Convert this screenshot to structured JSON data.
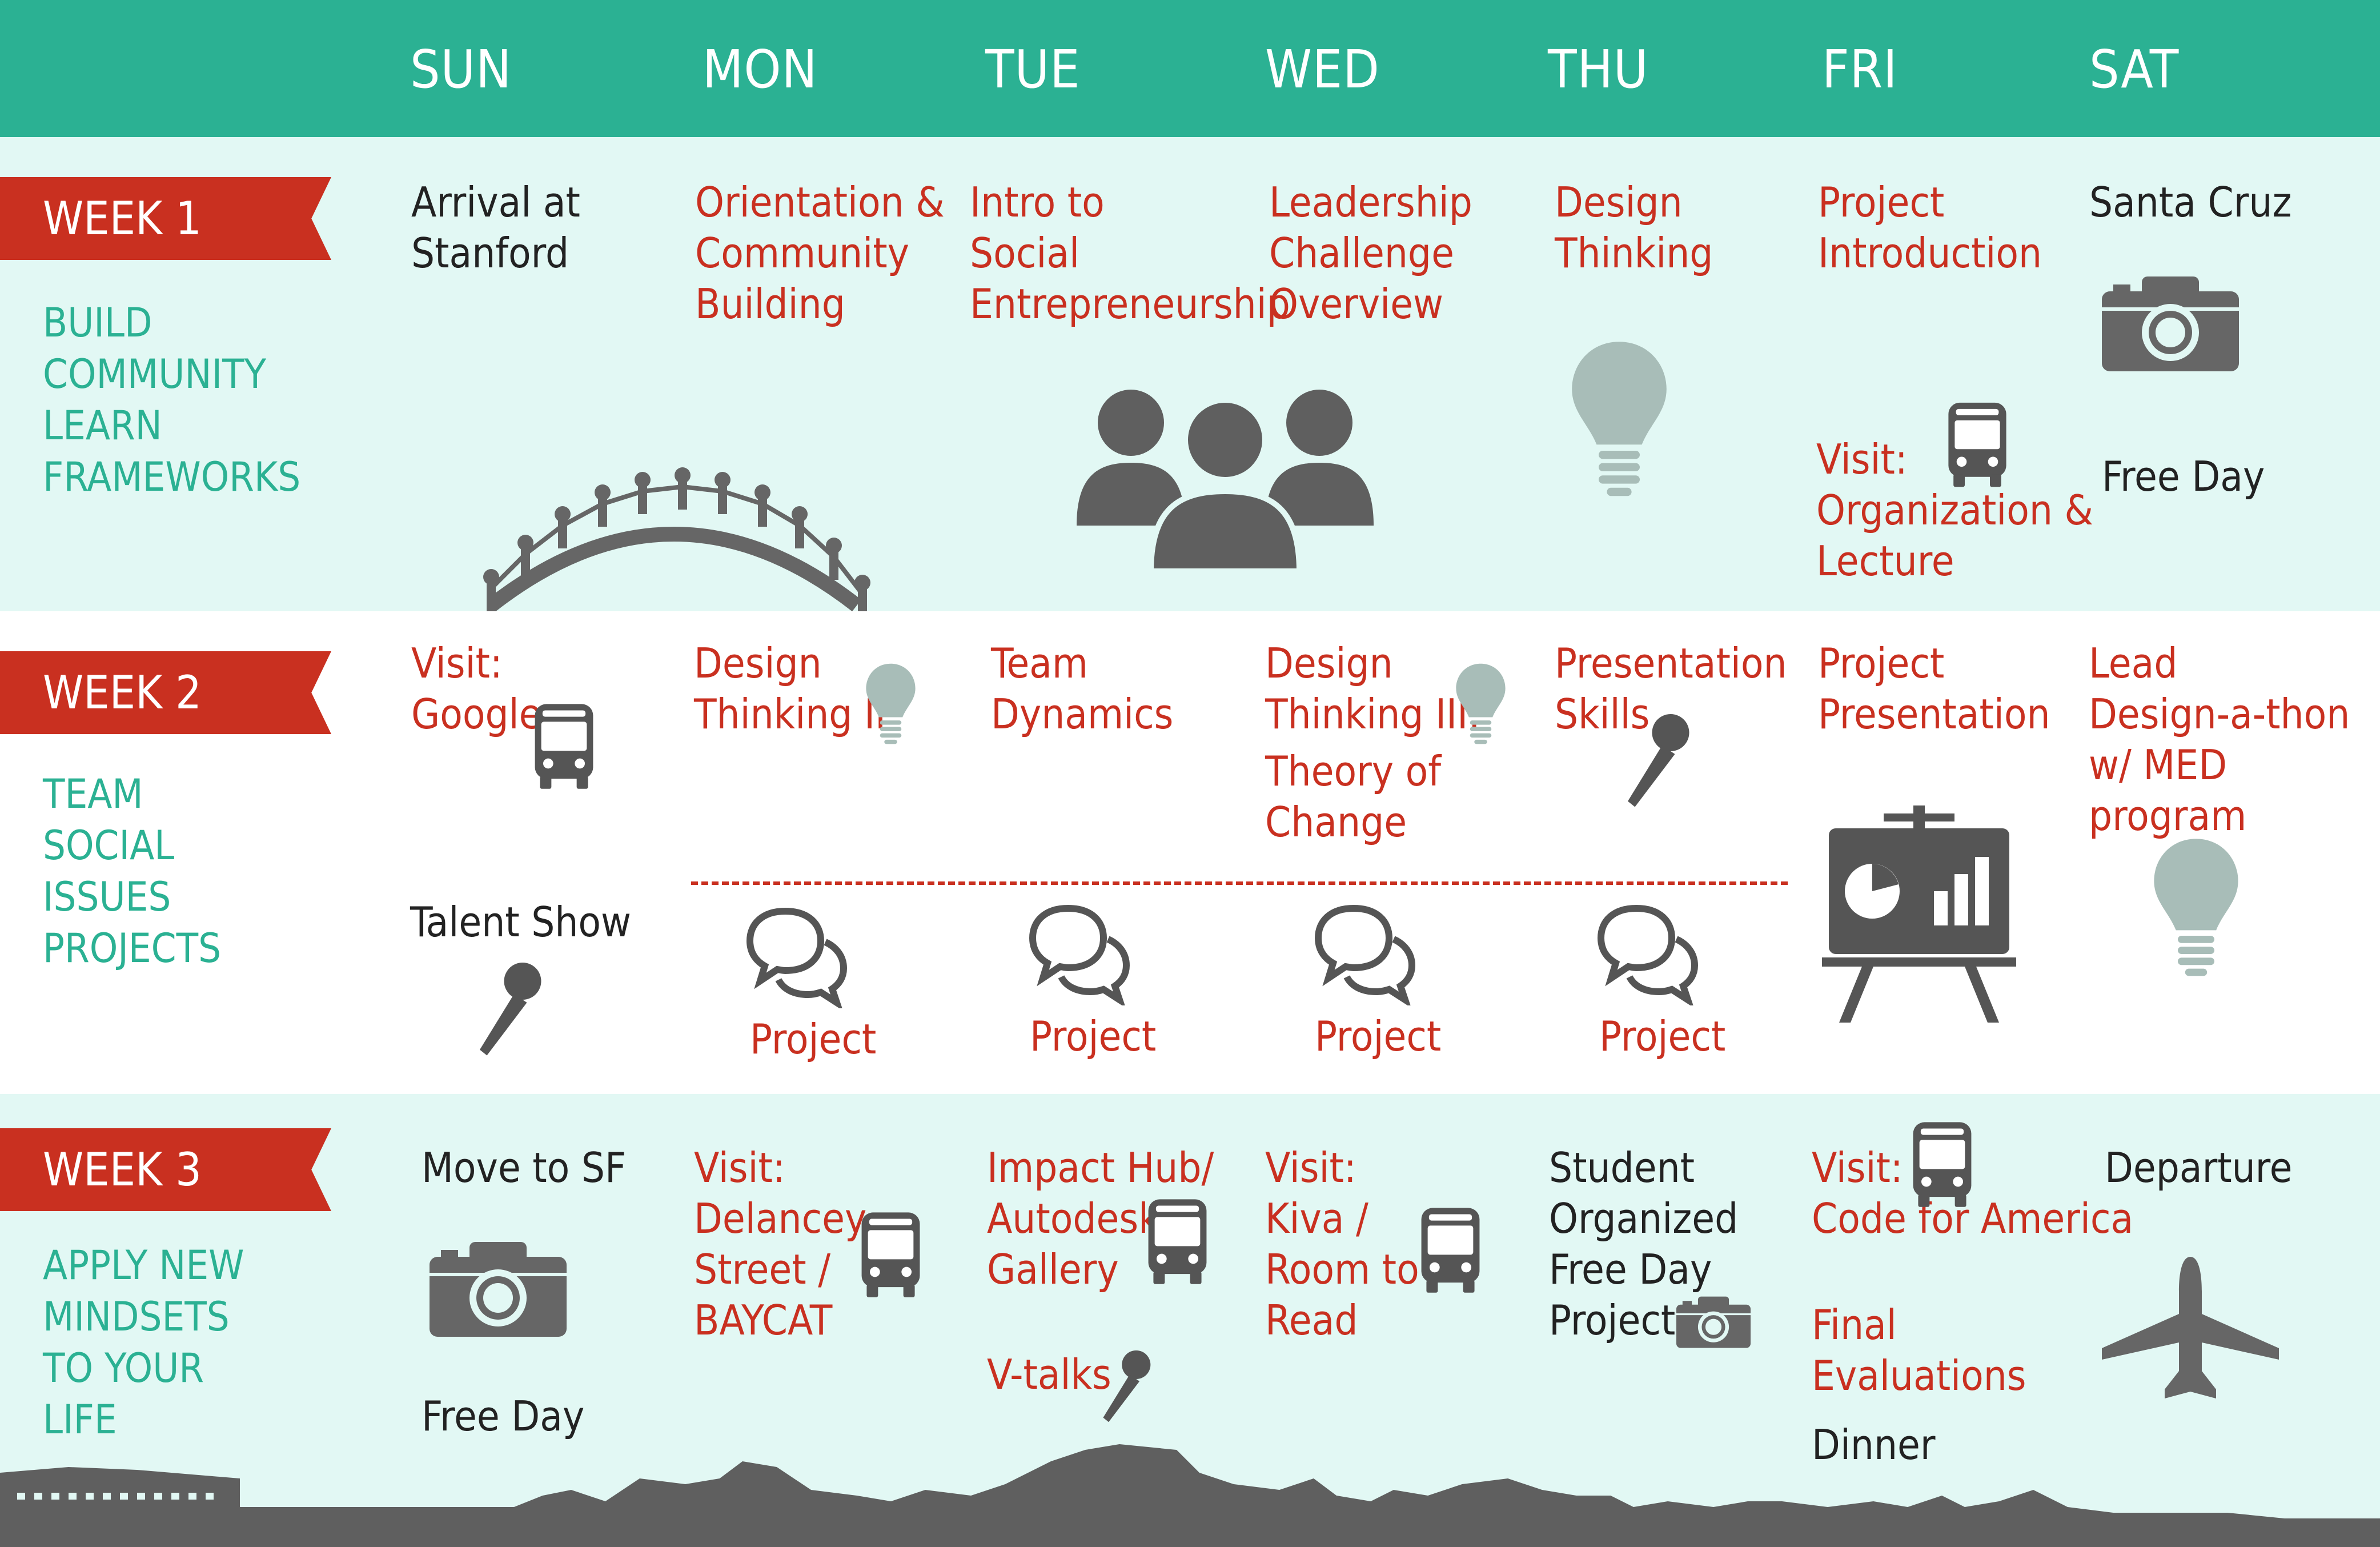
{
  "colors": {
    "header": "#2bb193",
    "band_light": "#e2f8f4",
    "band_white": "#ffffff",
    "accent_red": "#c93020",
    "theme_teal": "#2bb193",
    "icon_gray": "#5f5f5f",
    "bulb_gray": "#a8bdb8"
  },
  "days": [
    "SUN",
    "MON",
    "TUE",
    "WED",
    "THU",
    "FRI",
    "SAT"
  ],
  "weeks": [
    {
      "label": "WEEK 1",
      "theme": "BUILD\nCOMMUNITY\nLEARN\nFRAMEWORKS",
      "events": {
        "sun": "Arrival at\nStanford",
        "mon": "Orientation &\nCommunity\nBuilding",
        "tue": "Intro to\nSocial\nEntrepreneurship",
        "wed": "Leadership\nChallenge\nOverview",
        "thu": "Design\nThinking",
        "fri": "Project\nIntroduction",
        "fri_visit": "Visit:\nOrganization &\nLecture",
        "sat": "Santa Cruz",
        "sat_free": "Free Day"
      },
      "icons": [
        "people-arch-icon",
        "group-icon",
        "lightbulb-icon",
        "bus-icon",
        "camera-icon"
      ]
    },
    {
      "label": "WEEK 2",
      "theme": "TEAM\nSOCIAL\nISSUES\nPROJECTS",
      "events": {
        "sun": "Visit:\nGoogle",
        "sun_evening": "Talent Show",
        "mon": "Design\nThinking II",
        "tue": "Team\nDynamics",
        "wed": "Design\nThinking III:",
        "wed_2": "Theory of\nChange",
        "thu": "Presentation\nSkills",
        "fri": "Project\nPresentation",
        "sat": "Lead\nDesign-a-thon\nw/ MED program"
      },
      "project_label": "Project",
      "icons": [
        "bus-icon",
        "lightbulb-icon",
        "microphone-icon",
        "chat-bubbles-icon",
        "presentation-board-icon"
      ]
    },
    {
      "label": "WEEK 3",
      "theme": "APPLY NEW\nMINDSETS\nTO YOUR\nLIFE",
      "events": {
        "sun": "Move to SF",
        "sun_free": "Free Day",
        "mon": "Visit:\nDelancey\nStreet /\nBAYCAT",
        "tue": "Impact Hub/\nAutodesk\nGallery",
        "tue_2": "V-talks",
        "wed": "Visit:\nKiva /\nRoom to\nRead",
        "thu": "Student\nOrganized\nFree Day\nProject",
        "fri": "Visit:\nCode for America",
        "fri_2": "Final\nEvaluations",
        "fri_3": "Dinner",
        "sat": "Departure"
      },
      "icons": [
        "camera-icon",
        "bus-icon",
        "microphone-icon",
        "airplane-icon",
        "city-skyline-icon"
      ]
    }
  ]
}
